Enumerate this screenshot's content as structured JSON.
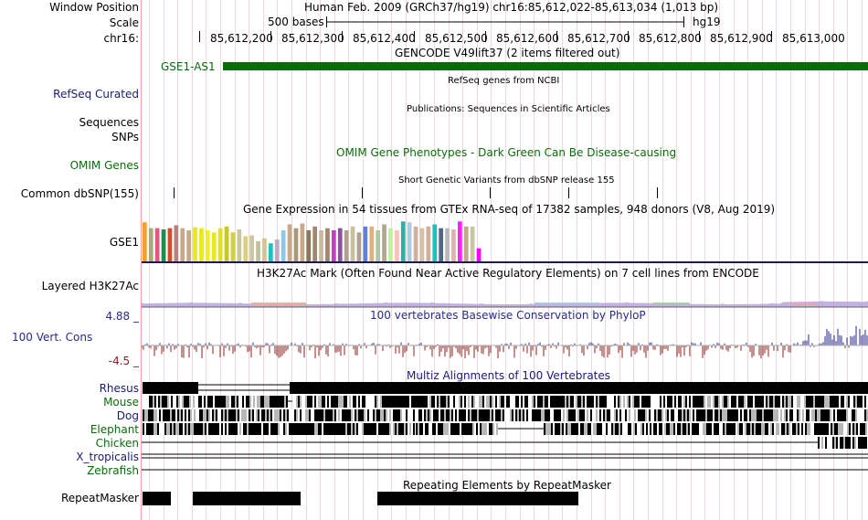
{
  "header": {
    "window_position_label": "Window Position",
    "window_position_value": "Human Feb. 2009 (GRCh37/hg19)   chr16:85,612,022-85,613,034 (1,013 bp)",
    "scale_label": "Scale",
    "scale_value": "500 bases",
    "assembly": "hg19",
    "chrom_label": "chr16:",
    "ruler_ticks": [
      "85,612,200",
      "85,612,300",
      "85,612,400",
      "85,612,500",
      "85,612,600",
      "85,612,700",
      "85,612,800",
      "85,612,900",
      "85,613,000"
    ]
  },
  "tracks": {
    "gencode": {
      "title": "GENCODE V49lift37 (2 items filtered out)",
      "item_label": "GSE1-AS1",
      "color": "#0b6b0b"
    },
    "refseq": {
      "label": "RefSeq Curated",
      "title": "RefSeq genes from NCBI",
      "color": "#1a1a7a"
    },
    "publications": {
      "label_line1": "Sequences",
      "label_line2": "SNPs",
      "title": "Publications: Sequences in Scientific Articles"
    },
    "omim": {
      "label": "OMIM Genes",
      "title": "OMIM Gene Phenotypes - Dark Green Can Be Disease-causing",
      "color": "#0b6b0b"
    },
    "dbsnp": {
      "label": "Common dbSNP(155)",
      "title": "Short Genetic Variants from dbSNP release 155"
    },
    "gtex": {
      "label": "GSE1",
      "title": "Gene Expression in 54 tissues from GTEx RNA-seq of 17382 samples, 948 donors (V8, Aug 2019)",
      "bar_levels": [
        0.93,
        0.79,
        0.79,
        0.76,
        0.79,
        0.86,
        0.79,
        0.74,
        0.81,
        0.79,
        0.74,
        0.69,
        0.79,
        0.83,
        0.69,
        0.76,
        0.6,
        0.62,
        0.48,
        0.55,
        0.43,
        0.52,
        0.74,
        0.88,
        0.79,
        0.9,
        0.74,
        0.83,
        0.74,
        0.79,
        0.74,
        0.79,
        0.74,
        0.83,
        0.69,
        0.83,
        0.83,
        0.74,
        0.88,
        0.79,
        0.74,
        0.95,
        0.93,
        0.83,
        0.79,
        0.83,
        0.88,
        0.79,
        0.79,
        0.76,
        0.95,
        0.83,
        0.83,
        0.31
      ],
      "bar_colors": [
        "#ff9933",
        "#a9a97a",
        "#e75480",
        "#1e8c4c",
        "#d24c2c",
        "#b98080",
        "#c8a888",
        "#c8a888",
        "#e8e820",
        "#e8e820",
        "#f0f020",
        "#e8e820",
        "#e0e020",
        "#c8c820",
        "#d0d040",
        "#c8c8a0",
        "#d8d080",
        "#c8c8a8",
        "#c0c0a0",
        "#d0c890",
        "#20c0c0",
        "#c0a8c0",
        "#8cc8e8",
        "#c8a888",
        "#a89878",
        "#c8a888",
        "#8c7858",
        "#a08870",
        "#c8b8a0",
        "#a08870",
        "#c040c0",
        "#9050a0",
        "#b0a090",
        "#c8c0a0",
        "#b0a090",
        "#6080e0",
        "#e0b080",
        "#b0c8a0",
        "#b0a890",
        "#c0f0a0",
        "#ffc0c0",
        "#30b0a0",
        "#b0c8e0",
        "#d0b0a0",
        "#d8c0a8",
        "#d0b098",
        "#20c0c0",
        "#506888",
        "#b8b8b8",
        "#e0b0b0",
        "#ff20ff",
        "#c0a888",
        "#c8c8a0",
        "#ff00ff"
      ]
    },
    "h3k27ac": {
      "label": "Layered H3K27Ac",
      "title": "H3K27Ac Mark (Often Found Near Active Regulatory Elements) on 7 cell lines from ENCODE"
    },
    "phylop": {
      "label": "100 Vert. Cons",
      "title": "100 vertebrates Basewise Conservation by PhyloP",
      "max": "4.88 _",
      "min": "-4.5 _",
      "color": "#2a2a8a"
    },
    "multiz": {
      "title": "Multiz Alignments of 100 Vertebrates",
      "species": [
        {
          "name": "Rhesus",
          "color": "#1a1a7a"
        },
        {
          "name": "Mouse",
          "color": "#0b6b0b"
        },
        {
          "name": "Dog",
          "color": "#1a1a7a"
        },
        {
          "name": "Elephant",
          "color": "#0b6b0b"
        },
        {
          "name": "Chicken",
          "color": "#0b6b0b"
        },
        {
          "name": "X_tropicalis",
          "color": "#1a1a7a"
        },
        {
          "name": "Zebrafish",
          "color": "#0b6b0b"
        }
      ]
    },
    "repeatmasker": {
      "label": "RepeatMasker",
      "title": "Repeating Elements by RepeatMasker"
    }
  }
}
